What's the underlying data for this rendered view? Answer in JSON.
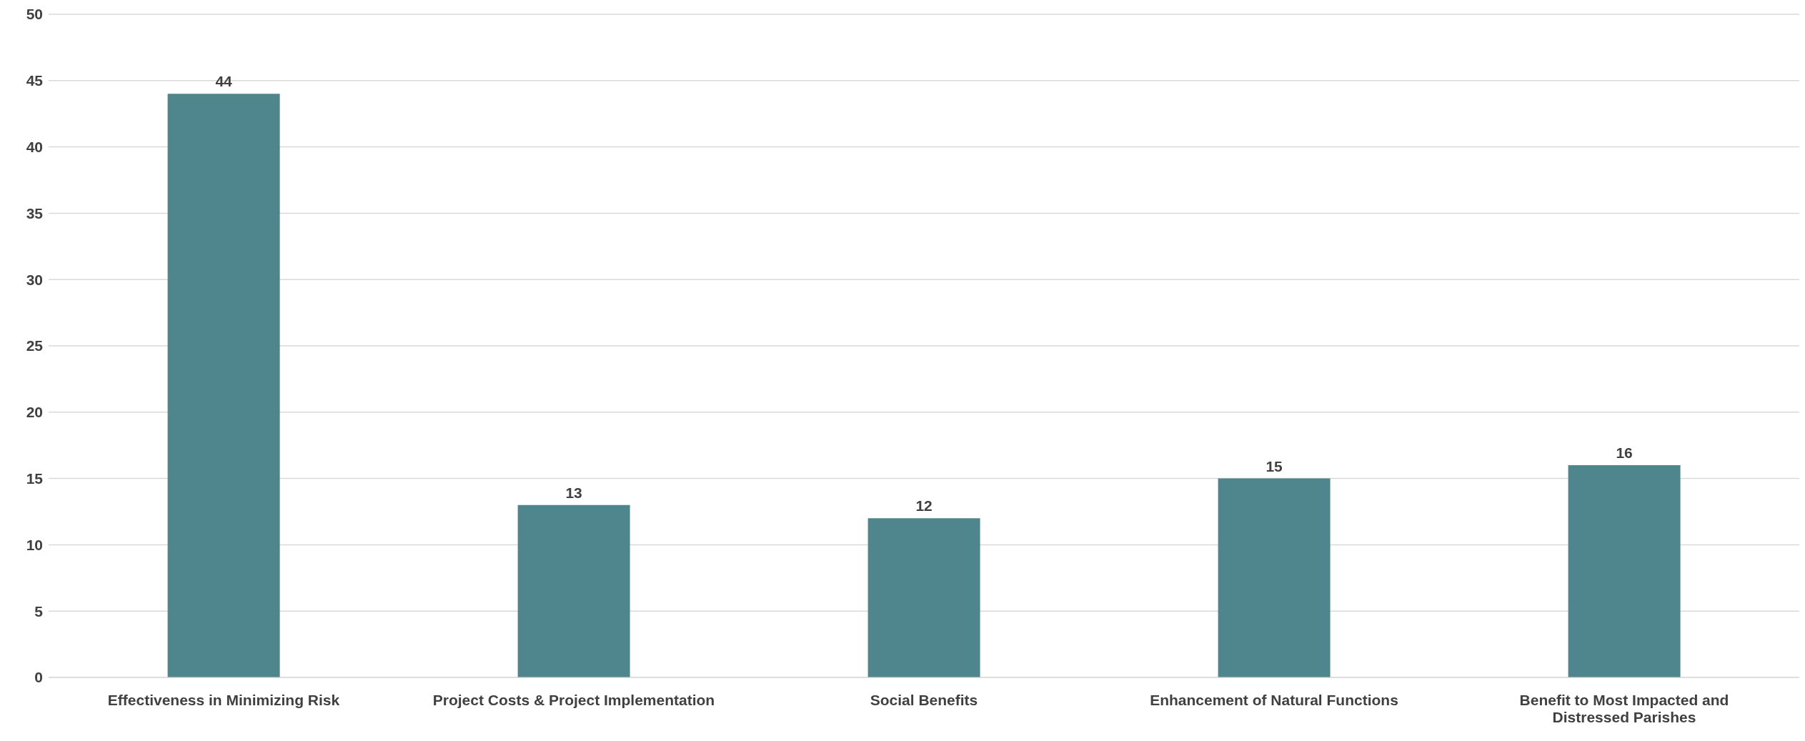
{
  "chart_data": {
    "type": "bar",
    "categories": [
      "Effectiveness in Minimizing Risk",
      "Project Costs & Project Implementation",
      "Social Benefits",
      "Enhancement of Natural Functions",
      "Benefit to Most Impacted and Distressed Parishes"
    ],
    "values": [
      44,
      13,
      12,
      15,
      16
    ],
    "color": "#4f858c",
    "ylim": [
      0,
      50
    ],
    "yticks": [
      0,
      5,
      10,
      15,
      20,
      25,
      30,
      35,
      40,
      45,
      50
    ],
    "grid": "y",
    "data_labels": true
  }
}
